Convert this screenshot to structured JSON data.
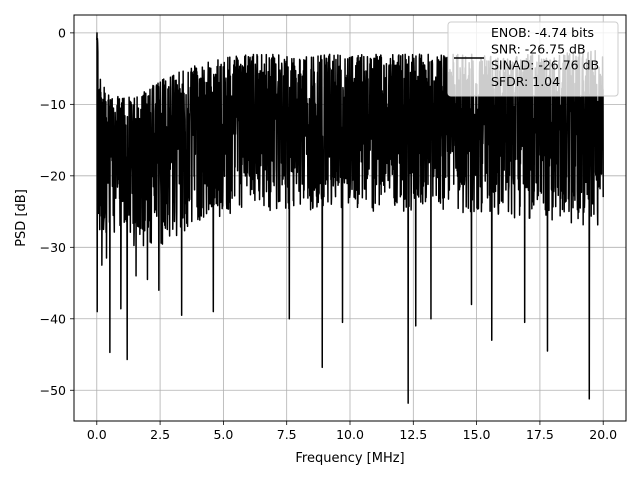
{
  "chart_data": {
    "type": "line",
    "title": "",
    "xlabel": "Frequency [MHz]",
    "ylabel": "PSD [dB]",
    "xlim": [
      -0.9,
      20.9
    ],
    "ylim": [
      -54.3,
      2.5
    ],
    "xticks": [
      0.0,
      2.5,
      5.0,
      7.5,
      10.0,
      12.5,
      15.0,
      17.5,
      20.0
    ],
    "xtick_labels": [
      "0.0",
      "2.5",
      "5.0",
      "7.5",
      "10.0",
      "12.5",
      "15.0",
      "17.5",
      "20.0"
    ],
    "yticks": [
      0,
      -10,
      -20,
      -30,
      -40,
      -50
    ],
    "ytick_labels": [
      "0",
      "−10",
      "−20",
      "−30",
      "−40",
      "−50"
    ],
    "grid": true,
    "legend_placement": "top-right",
    "series": [
      {
        "name": "ENOB: -4.74 bits\nSNR: -26.75 dB\nSINAD: -26.76 dB\nSFDR: 1.04",
        "color": "#000000",
        "upper_envelope": {
          "x": [
            0.0,
            0.02,
            0.05,
            0.1,
            0.25,
            0.5,
            1.0,
            1.5,
            2.0,
            2.5,
            3.0,
            3.5,
            4.0,
            5.0,
            6.0,
            7.0,
            8.0,
            9.0,
            10.0,
            11.0,
            12.0,
            13.0,
            14.0,
            15.0,
            16.0,
            17.0,
            18.0,
            19.0,
            20.0
          ],
          "y": [
            -0.5,
            0.0,
            -3.0,
            -6.0,
            -7.0,
            -8.5,
            -9.0,
            -9.0,
            -8.0,
            -6.5,
            -5.5,
            -5.0,
            -4.5,
            -3.5,
            -3.0,
            -3.0,
            -3.5,
            -3.0,
            -3.0,
            -3.0,
            -3.0,
            -3.0,
            -3.0,
            -3.0,
            -3.5,
            -3.0,
            -3.0,
            -2.5,
            -2.5
          ]
        },
        "lower_envelope": {
          "x": [
            0.0,
            0.5,
            1.0,
            1.5,
            2.0,
            2.5,
            3.0,
            3.5,
            4.0,
            5.0,
            6.0,
            7.0,
            8.0,
            9.0,
            10.0,
            11.0,
            12.0,
            13.0,
            14.0,
            15.0,
            16.0,
            17.0,
            18.0,
            19.0,
            20.0
          ],
          "y": [
            -28.0,
            -28.0,
            -29.0,
            -30.0,
            -31.0,
            -30.0,
            -29.0,
            -28.0,
            -27.0,
            -26.0,
            -25.0,
            -25.0,
            -25.0,
            -24.5,
            -24.5,
            -25.0,
            -25.0,
            -24.5,
            -25.0,
            -25.5,
            -26.0,
            -26.0,
            -26.5,
            -27.0,
            -27.0
          ]
        },
        "notable_dips": [
          {
            "x": 0.02,
            "y": -39.0
          },
          {
            "x": 0.2,
            "y": -32.5
          },
          {
            "x": 0.38,
            "y": -31.5
          },
          {
            "x": 0.52,
            "y": -44.7
          },
          {
            "x": 0.95,
            "y": -38.6
          },
          {
            "x": 1.2,
            "y": -45.7
          },
          {
            "x": 1.55,
            "y": -34.0
          },
          {
            "x": 2.0,
            "y": -34.5
          },
          {
            "x": 2.45,
            "y": -36.0
          },
          {
            "x": 3.35,
            "y": -39.5
          },
          {
            "x": 4.6,
            "y": -39.0
          },
          {
            "x": 7.6,
            "y": -40.0
          },
          {
            "x": 8.9,
            "y": -46.8
          },
          {
            "x": 9.7,
            "y": -40.5
          },
          {
            "x": 12.3,
            "y": -51.8
          },
          {
            "x": 12.6,
            "y": -41.0
          },
          {
            "x": 13.2,
            "y": -40.0
          },
          {
            "x": 14.8,
            "y": -38.0
          },
          {
            "x": 15.6,
            "y": -43.0
          },
          {
            "x": 16.9,
            "y": -40.5
          },
          {
            "x": 17.8,
            "y": -44.5
          },
          {
            "x": 19.45,
            "y": -51.2
          }
        ]
      }
    ]
  }
}
